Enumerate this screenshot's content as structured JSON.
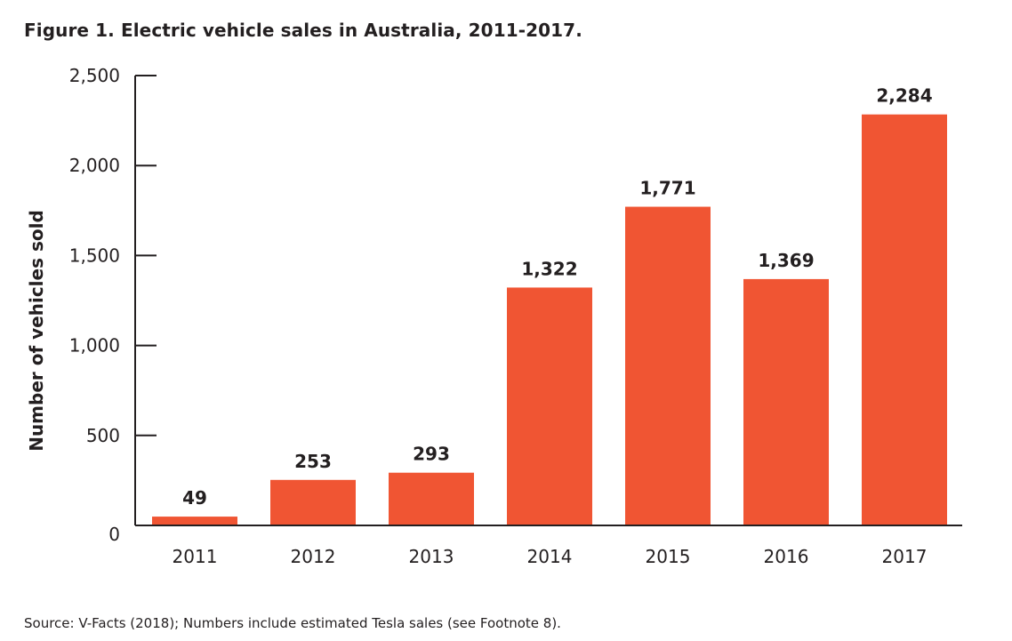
{
  "figure": {
    "title": "Figure 1. Electric vehicle sales in Australia, 2011-2017.",
    "source": "Source: V-Facts (2018); Numbers include estimated Tesla sales (see Footnote 8)."
  },
  "colors": {
    "bar": "#f05533",
    "axis": "#231f20",
    "text": "#231f20"
  },
  "chart_data": {
    "type": "bar",
    "title": "Figure 1. Electric vehicle sales in Australia, 2011-2017.",
    "xlabel": "",
    "ylabel": "Number of vehicles sold",
    "categories": [
      "2011",
      "2012",
      "2013",
      "2014",
      "2015",
      "2016",
      "2017"
    ],
    "values": [
      49,
      253,
      293,
      1322,
      1771,
      1369,
      2284
    ],
    "value_labels": [
      "49",
      "253",
      "293",
      "1,322",
      "1,771",
      "1,369",
      "2,284"
    ],
    "ylim": [
      0,
      2500
    ],
    "yticks": [
      0,
      500,
      1000,
      1500,
      2000,
      2500
    ],
    "ytick_labels": [
      "0",
      "500",
      "1,000",
      "1,500",
      "2,000",
      "2,500"
    ],
    "grid": false,
    "legend": "none"
  }
}
